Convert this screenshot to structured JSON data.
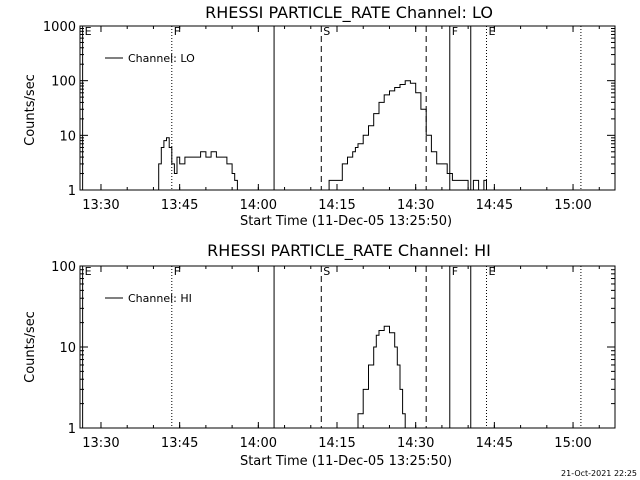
{
  "timestamp": "21-Oct-2021 22:25",
  "colors": {
    "background": "#ffffff",
    "foreground": "#000000"
  },
  "chart_data": [
    {
      "type": "line",
      "title": "RHESSI PARTICLE_RATE Channel: LO",
      "xlabel": "Start Time (11-Dec-05 13:25:50)",
      "ylabel": "Counts/sec",
      "yscale": "log",
      "ylim": [
        1,
        1000
      ],
      "xlim": [
        "13:26",
        "15:08"
      ],
      "xticks": [
        "13:30",
        "13:45",
        "14:00",
        "14:15",
        "14:30",
        "14:45",
        "15:00"
      ],
      "yticks": [
        "1",
        "10",
        "100",
        "1000"
      ],
      "legend": {
        "label": "Channel: LO",
        "position": "top-left"
      },
      "markers": [
        {
          "label": "E",
          "time": "13:26.5",
          "style": "solid"
        },
        {
          "label": "F",
          "time": "13:43.5",
          "style": "dotted"
        },
        {
          "label": "",
          "time": "14:03",
          "style": "solid"
        },
        {
          "label": "S",
          "time": "14:12",
          "style": "dashed"
        },
        {
          "label": "",
          "time": "14:32",
          "style": "dashed"
        },
        {
          "label": "F",
          "time": "14:36.5",
          "style": "solid"
        },
        {
          "label": "",
          "time": "14:40.5",
          "style": "solid"
        },
        {
          "label": "E",
          "time": "14:43.5",
          "style": "dotted"
        },
        {
          "label": "",
          "time": "15:01.5",
          "style": "dotted"
        }
      ],
      "series": [
        {
          "name": "Channel: LO",
          "x": [
            "13:40.5",
            "13:41",
            "13:41.5",
            "13:42",
            "13:42.5",
            "13:43",
            "13:43.5",
            "13:44",
            "13:44.5",
            "13:45",
            "13:46",
            "13:47",
            "13:48",
            "13:49",
            "13:50",
            "13:51",
            "13:52",
            "13:53",
            "13:54",
            "13:55",
            "13:55.5",
            "13:56",
            "14:13",
            "14:13.5",
            "14:14",
            "14:15",
            "14:15.5",
            "14:16",
            "14:17",
            "14:18",
            "14:18.5",
            "14:19",
            "14:20",
            "14:21",
            "14:22",
            "14:23",
            "14:24",
            "14:25",
            "14:26",
            "14:27",
            "14:28",
            "14:29",
            "14:30",
            "14:31",
            "14:32",
            "14:33",
            "14:34",
            "14:35",
            "14:36",
            "14:37",
            "14:38",
            "14:39",
            "14:40",
            "14:41",
            "14:42",
            "14:43",
            "14:43.5",
            "14:44"
          ],
          "y": [
            1,
            3,
            6,
            8,
            9,
            6,
            3,
            2,
            4,
            3,
            4,
            4,
            4,
            5,
            4,
            5,
            4,
            4,
            3,
            2,
            1.5,
            1,
            1,
            1.5,
            1.5,
            1.5,
            1.5,
            3,
            4,
            5,
            6,
            7,
            10,
            15,
            25,
            40,
            55,
            65,
            75,
            85,
            100,
            90,
            60,
            30,
            10,
            5,
            3,
            3,
            2,
            1.5,
            1.5,
            1.5,
            1,
            1.5,
            1,
            1.5,
            1,
            1
          ]
        }
      ]
    },
    {
      "type": "line",
      "title": "RHESSI PARTICLE_RATE Channel: HI",
      "xlabel": "Start Time (11-Dec-05 13:25:50)",
      "ylabel": "Counts/sec",
      "yscale": "log",
      "ylim": [
        1,
        100
      ],
      "xlim": [
        "13:26",
        "15:08"
      ],
      "xticks": [
        "13:30",
        "13:45",
        "14:00",
        "14:15",
        "14:30",
        "14:45",
        "15:00"
      ],
      "yticks": [
        "1",
        "10",
        "100"
      ],
      "legend": {
        "label": "Channel: HI",
        "position": "top-left"
      },
      "markers": [
        {
          "label": "E",
          "time": "13:26.5",
          "style": "solid"
        },
        {
          "label": "F",
          "time": "13:43.5",
          "style": "dotted"
        },
        {
          "label": "",
          "time": "14:03",
          "style": "solid"
        },
        {
          "label": "S",
          "time": "14:12",
          "style": "dashed"
        },
        {
          "label": "",
          "time": "14:32",
          "style": "dashed"
        },
        {
          "label": "F",
          "time": "14:36.5",
          "style": "solid"
        },
        {
          "label": "",
          "time": "14:40.5",
          "style": "solid"
        },
        {
          "label": "E",
          "time": "14:43.5",
          "style": "dotted"
        },
        {
          "label": "",
          "time": "15:01.5",
          "style": "dotted"
        }
      ],
      "series": [
        {
          "name": "Channel: HI",
          "x": [
            "14:18",
            "14:19",
            "14:20",
            "14:21",
            "14:22",
            "14:22.5",
            "14:23",
            "14:24",
            "14:25",
            "14:26",
            "14:26.5",
            "14:27",
            "14:27.5",
            "14:28"
          ],
          "y": [
            1,
            1.5,
            3,
            6,
            10,
            14,
            16,
            18,
            15,
            10,
            6,
            3,
            1.5,
            1
          ]
        }
      ]
    }
  ]
}
